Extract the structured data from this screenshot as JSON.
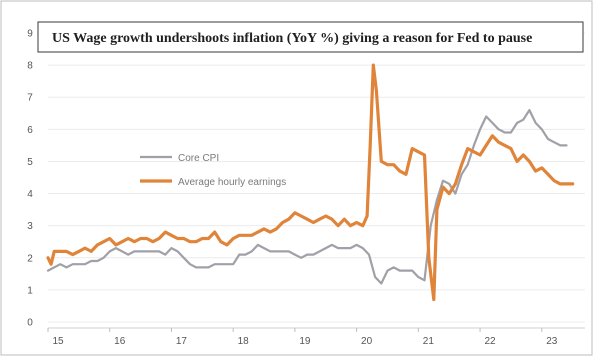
{
  "chart_data": {
    "type": "line",
    "title": "US Wage growth undershoots inflation (YoY %) giving a reason for Fed to pause",
    "xlabel": "",
    "ylabel": "",
    "xlim": [
      2015.0,
      2023.7
    ],
    "ylim": [
      0,
      9
    ],
    "grid": true,
    "legend_position": "center-left",
    "x_ticks": [
      {
        "value": 2015.0,
        "label": "15"
      },
      {
        "value": 2016.0,
        "label": "16"
      },
      {
        "value": 2017.0,
        "label": "17"
      },
      {
        "value": 2018.0,
        "label": "18"
      },
      {
        "value": 2019.0,
        "label": "19"
      },
      {
        "value": 2020.0,
        "label": "20"
      },
      {
        "value": 2021.0,
        "label": "21"
      },
      {
        "value": 2022.0,
        "label": "22"
      },
      {
        "value": 2023.0,
        "label": "23"
      }
    ],
    "y_ticks": [
      0,
      1,
      2,
      3,
      4,
      5,
      6,
      7,
      8,
      9
    ],
    "series": [
      {
        "name": "Core CPI",
        "color": "#a0a0a8",
        "points": [
          [
            2015.0,
            1.6
          ],
          [
            2015.1,
            1.7
          ],
          [
            2015.2,
            1.8
          ],
          [
            2015.3,
            1.7
          ],
          [
            2015.4,
            1.8
          ],
          [
            2015.5,
            1.8
          ],
          [
            2015.6,
            1.8
          ],
          [
            2015.7,
            1.9
          ],
          [
            2015.8,
            1.9
          ],
          [
            2015.9,
            2.0
          ],
          [
            2016.0,
            2.2
          ],
          [
            2016.1,
            2.3
          ],
          [
            2016.2,
            2.2
          ],
          [
            2016.3,
            2.1
          ],
          [
            2016.4,
            2.2
          ],
          [
            2016.5,
            2.2
          ],
          [
            2016.6,
            2.2
          ],
          [
            2016.7,
            2.2
          ],
          [
            2016.8,
            2.2
          ],
          [
            2016.9,
            2.1
          ],
          [
            2017.0,
            2.3
          ],
          [
            2017.1,
            2.2
          ],
          [
            2017.2,
            2.0
          ],
          [
            2017.3,
            1.8
          ],
          [
            2017.4,
            1.7
          ],
          [
            2017.5,
            1.7
          ],
          [
            2017.6,
            1.7
          ],
          [
            2017.7,
            1.8
          ],
          [
            2017.8,
            1.8
          ],
          [
            2017.9,
            1.8
          ],
          [
            2018.0,
            1.8
          ],
          [
            2018.1,
            2.1
          ],
          [
            2018.2,
            2.1
          ],
          [
            2018.3,
            2.2
          ],
          [
            2018.4,
            2.4
          ],
          [
            2018.5,
            2.3
          ],
          [
            2018.6,
            2.2
          ],
          [
            2018.7,
            2.2
          ],
          [
            2018.8,
            2.2
          ],
          [
            2018.9,
            2.2
          ],
          [
            2019.0,
            2.1
          ],
          [
            2019.1,
            2.0
          ],
          [
            2019.2,
            2.1
          ],
          [
            2019.3,
            2.1
          ],
          [
            2019.4,
            2.2
          ],
          [
            2019.5,
            2.3
          ],
          [
            2019.6,
            2.4
          ],
          [
            2019.7,
            2.3
          ],
          [
            2019.8,
            2.3
          ],
          [
            2019.9,
            2.3
          ],
          [
            2020.0,
            2.4
          ],
          [
            2020.1,
            2.3
          ],
          [
            2020.2,
            2.1
          ],
          [
            2020.3,
            1.4
          ],
          [
            2020.4,
            1.2
          ],
          [
            2020.5,
            1.6
          ],
          [
            2020.6,
            1.7
          ],
          [
            2020.7,
            1.6
          ],
          [
            2020.8,
            1.6
          ],
          [
            2020.9,
            1.6
          ],
          [
            2021.0,
            1.4
          ],
          [
            2021.1,
            1.3
          ],
          [
            2021.2,
            3.0
          ],
          [
            2021.3,
            3.8
          ],
          [
            2021.4,
            4.4
          ],
          [
            2021.5,
            4.3
          ],
          [
            2021.6,
            4.0
          ],
          [
            2021.7,
            4.6
          ],
          [
            2021.8,
            4.9
          ],
          [
            2021.9,
            5.5
          ],
          [
            2022.0,
            6.0
          ],
          [
            2022.1,
            6.4
          ],
          [
            2022.2,
            6.2
          ],
          [
            2022.3,
            6.0
          ],
          [
            2022.4,
            5.9
          ],
          [
            2022.5,
            5.9
          ],
          [
            2022.6,
            6.2
          ],
          [
            2022.7,
            6.3
          ],
          [
            2022.8,
            6.6
          ],
          [
            2022.9,
            6.2
          ],
          [
            2023.0,
            6.0
          ],
          [
            2023.1,
            5.7
          ],
          [
            2023.2,
            5.6
          ],
          [
            2023.3,
            5.5
          ],
          [
            2023.4,
            5.5
          ]
        ]
      },
      {
        "name": "Average hourly earnings",
        "color": "#e0843a",
        "points": [
          [
            2015.0,
            2.0
          ],
          [
            2015.05,
            1.8
          ],
          [
            2015.1,
            2.2
          ],
          [
            2015.2,
            2.2
          ],
          [
            2015.3,
            2.2
          ],
          [
            2015.4,
            2.1
          ],
          [
            2015.5,
            2.2
          ],
          [
            2015.6,
            2.3
          ],
          [
            2015.7,
            2.2
          ],
          [
            2015.8,
            2.4
          ],
          [
            2015.9,
            2.5
          ],
          [
            2016.0,
            2.6
          ],
          [
            2016.1,
            2.4
          ],
          [
            2016.2,
            2.5
          ],
          [
            2016.3,
            2.6
          ],
          [
            2016.4,
            2.5
          ],
          [
            2016.5,
            2.6
          ],
          [
            2016.6,
            2.6
          ],
          [
            2016.7,
            2.5
          ],
          [
            2016.8,
            2.6
          ],
          [
            2016.9,
            2.8
          ],
          [
            2017.0,
            2.7
          ],
          [
            2017.1,
            2.6
          ],
          [
            2017.2,
            2.6
          ],
          [
            2017.3,
            2.5
          ],
          [
            2017.4,
            2.5
          ],
          [
            2017.5,
            2.6
          ],
          [
            2017.6,
            2.6
          ],
          [
            2017.7,
            2.8
          ],
          [
            2017.8,
            2.5
          ],
          [
            2017.9,
            2.4
          ],
          [
            2018.0,
            2.6
          ],
          [
            2018.1,
            2.7
          ],
          [
            2018.2,
            2.7
          ],
          [
            2018.3,
            2.7
          ],
          [
            2018.4,
            2.8
          ],
          [
            2018.5,
            2.9
          ],
          [
            2018.6,
            2.8
          ],
          [
            2018.7,
            2.9
          ],
          [
            2018.8,
            3.1
          ],
          [
            2018.9,
            3.2
          ],
          [
            2019.0,
            3.4
          ],
          [
            2019.1,
            3.3
          ],
          [
            2019.2,
            3.2
          ],
          [
            2019.3,
            3.1
          ],
          [
            2019.4,
            3.2
          ],
          [
            2019.5,
            3.3
          ],
          [
            2019.6,
            3.2
          ],
          [
            2019.7,
            3.0
          ],
          [
            2019.8,
            3.2
          ],
          [
            2019.9,
            3.0
          ],
          [
            2020.0,
            3.1
          ],
          [
            2020.1,
            3.0
          ],
          [
            2020.17,
            3.3
          ],
          [
            2020.22,
            5.5
          ],
          [
            2020.27,
            8.0
          ],
          [
            2020.32,
            7.2
          ],
          [
            2020.4,
            5.0
          ],
          [
            2020.5,
            4.9
          ],
          [
            2020.6,
            4.9
          ],
          [
            2020.7,
            4.7
          ],
          [
            2020.8,
            4.6
          ],
          [
            2020.9,
            5.4
          ],
          [
            2021.0,
            5.3
          ],
          [
            2021.1,
            5.2
          ],
          [
            2021.17,
            2.0
          ],
          [
            2021.25,
            0.7
          ],
          [
            2021.3,
            3.5
          ],
          [
            2021.4,
            4.2
          ],
          [
            2021.5,
            4.0
          ],
          [
            2021.6,
            4.3
          ],
          [
            2021.7,
            4.9
          ],
          [
            2021.8,
            5.4
          ],
          [
            2021.9,
            5.3
          ],
          [
            2022.0,
            5.2
          ],
          [
            2022.1,
            5.5
          ],
          [
            2022.2,
            5.8
          ],
          [
            2022.3,
            5.6
          ],
          [
            2022.4,
            5.5
          ],
          [
            2022.5,
            5.4
          ],
          [
            2022.6,
            5.0
          ],
          [
            2022.7,
            5.2
          ],
          [
            2022.8,
            5.0
          ],
          [
            2022.9,
            4.7
          ],
          [
            2023.0,
            4.8
          ],
          [
            2023.1,
            4.6
          ],
          [
            2023.2,
            4.4
          ],
          [
            2023.3,
            4.3
          ],
          [
            2023.4,
            4.3
          ],
          [
            2023.5,
            4.3
          ]
        ]
      }
    ]
  }
}
